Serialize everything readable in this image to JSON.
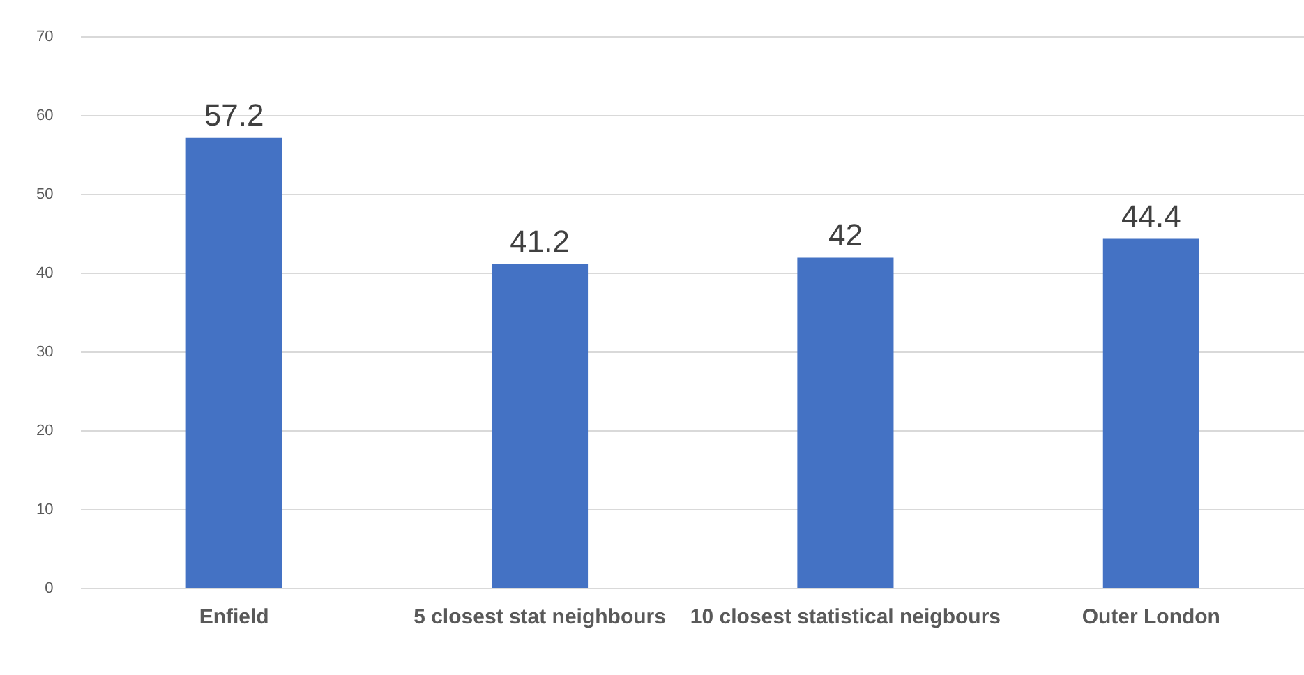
{
  "chart_data": {
    "type": "bar",
    "categories": [
      "Enfield",
      "5 closest stat neighbours",
      "10 closest statistical neigbours",
      "Outer London"
    ],
    "values": [
      57.2,
      41.2,
      42,
      44.4
    ],
    "color": "#4472c4",
    "ylim": [
      0,
      70
    ],
    "yticks": [
      0,
      10,
      20,
      30,
      40,
      50,
      60,
      70
    ],
    "grid": "y",
    "data_labels": true,
    "legend": false
  }
}
